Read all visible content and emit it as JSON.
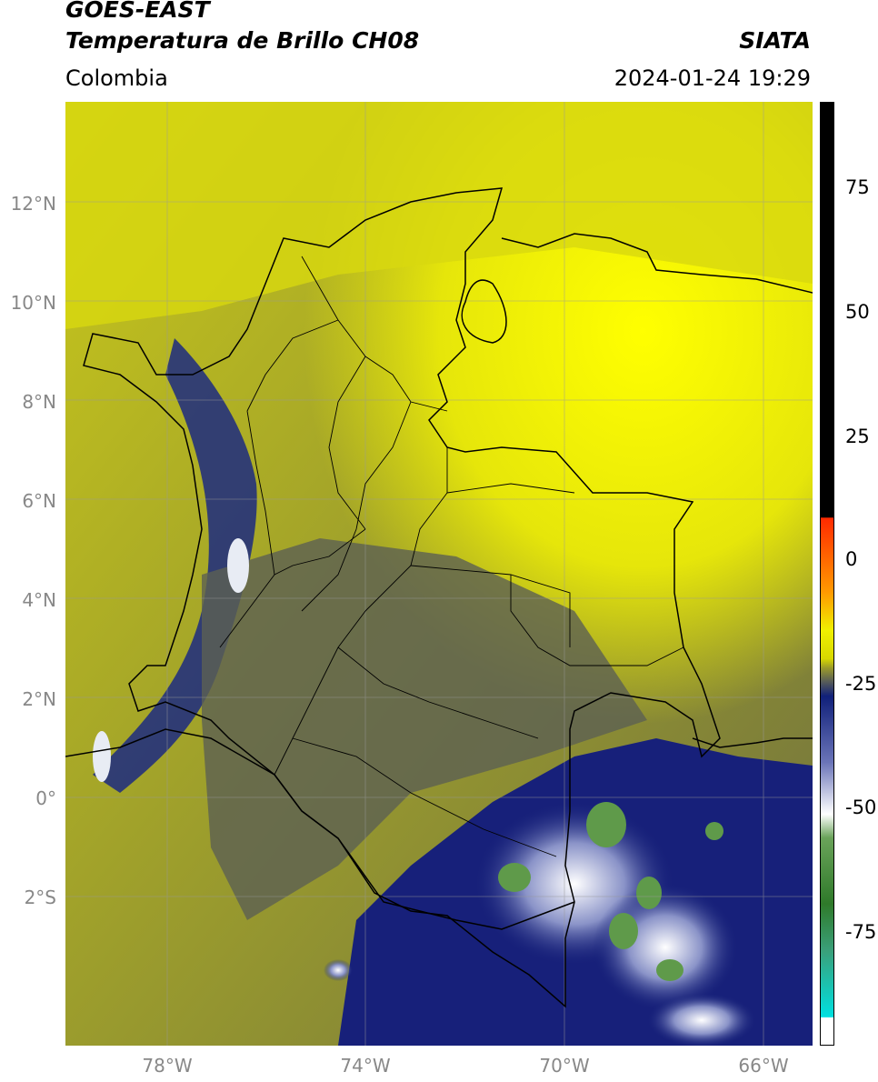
{
  "header": {
    "title_line1": "GOES-EAST",
    "title_line2": "Temperatura de Brillo CH08",
    "region": "Colombia",
    "source": "SIATA",
    "datetime": "2024-01-24 19:29"
  },
  "axes": {
    "lat_labels": [
      "12°N",
      "10°N",
      "8°N",
      "6°N",
      "4°N",
      "2°N",
      "0°",
      "2°S"
    ],
    "lon_labels": [
      "78°W",
      "74°W",
      "70°W",
      "66°W"
    ]
  },
  "colorbar": {
    "ticks": [
      "75",
      "50",
      "25",
      "0",
      "-25",
      "-50",
      "-75"
    ],
    "colors": {
      "black": "#000000",
      "red": "#ff2a00",
      "orange": "#ff9a00",
      "yellow": "#f0f000",
      "olive": "#9a9a2a",
      "gray": "#555a5a",
      "navy": "#10207a",
      "white": "#ffffff",
      "green": "#2f7a2a",
      "cyan": "#00e0e0"
    }
  },
  "map": {
    "layers": [
      "brightness-temperature",
      "country-borders",
      "department-borders",
      "graticule"
    ]
  }
}
